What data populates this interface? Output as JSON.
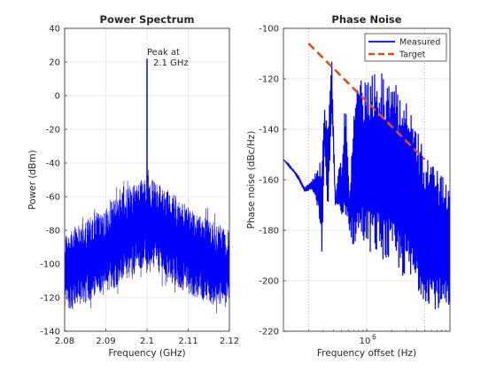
{
  "chart_data": [
    {
      "type": "line",
      "title": "Power Spectrum",
      "xlabel": "Frequency (GHz)",
      "ylabel": "Power (dBm)",
      "xlim": [
        2.08,
        2.12
      ],
      "ylim": [
        -140,
        40
      ],
      "xticks": [
        "2.08",
        "2.09",
        "2.1",
        "2.11",
        "2.12"
      ],
      "xtick_values": [
        2.08,
        2.09,
        2.1,
        2.11,
        2.12
      ],
      "yticks": [
        "40",
        "20",
        "0",
        "-20",
        "-40",
        "-60",
        "-80",
        "-100",
        "-120",
        "-140"
      ],
      "ytick_values": [
        40,
        20,
        0,
        -20,
        -40,
        -60,
        -80,
        -100,
        -120,
        -140
      ],
      "grid": true,
      "series": [
        {
          "color": "#0000ff",
          "peak": {
            "x": 2.1,
            "y": 22
          },
          "noise_envelope_top": {
            "x": [
              2.08,
              2.09,
              2.095,
              2.1,
              2.105,
              2.11,
              2.12
            ],
            "y": [
              -82,
              -66,
              -55,
              -46,
              -55,
              -66,
              -80
            ]
          },
          "noise_envelope_bottom": {
            "x": [
              2.08,
              2.09,
              2.095,
              2.1,
              2.105,
              2.11,
              2.12
            ],
            "y": [
              -128,
              -118,
              -110,
              -100,
              -110,
              -118,
              -128
            ]
          }
        }
      ],
      "annotation": {
        "line1": "Peak at",
        "line2": "2.1 GHz",
        "x": 2.1,
        "y": 22
      }
    },
    {
      "type": "line",
      "title": "Phase Noise",
      "xlabel": "Frequency offset (Hz)",
      "ylabel": "Phase noise (dBc/Hz)",
      "xscale": "log",
      "xlim": [
        100000,
        10000000
      ],
      "ylim": [
        -220,
        -100
      ],
      "xticks": [
        "10"
      ],
      "xtick_superscripts": [
        "6"
      ],
      "xtick_values": [
        1000000
      ],
      "yticks": [
        "-100",
        "-120",
        "-140",
        "-160",
        "-180",
        "-200",
        "-220"
      ],
      "ytick_values": [
        -100,
        -120,
        -140,
        -160,
        -180,
        -200,
        -220
      ],
      "grid": true,
      "vlines": [
        200000,
        5000000
      ],
      "legend": {
        "position": "top-right"
      },
      "series": [
        {
          "name": "Measured",
          "color": "#0000ff",
          "style": "solid",
          "x": [
            100000,
            150000,
            180000,
            220000,
            260000,
            290000,
            310000,
            340000,
            380000,
            420000,
            460000,
            500000,
            560000,
            620000,
            700000,
            800000,
            900000,
            1000000,
            1300000,
            1600000,
            2000000,
            2500000,
            3000000,
            4000000,
            5000000,
            7000000,
            10000000
          ],
          "upper": [
            -152,
            -158,
            -163,
            -160,
            -155,
            -150,
            -130,
            -140,
            -110,
            -168,
            -155,
            -152,
            -125,
            -165,
            -130,
            -118,
            -122,
            -120,
            -117,
            -118,
            -120,
            -122,
            -126,
            -140,
            -150,
            -156,
            -160
          ],
          "lower": [
            -152,
            -160,
            -165,
            -164,
            -172,
            -190,
            -150,
            -175,
            -135,
            -170,
            -172,
            -178,
            -175,
            -180,
            -188,
            -185,
            -185,
            -188,
            -190,
            -192,
            -195,
            -198,
            -200,
            -205,
            -208,
            -212,
            -215
          ]
        },
        {
          "name": "Target",
          "color": "#d95319",
          "style": "dashed",
          "x": [
            200000,
            5000000
          ],
          "y": [
            -106,
            -152
          ]
        }
      ]
    }
  ]
}
